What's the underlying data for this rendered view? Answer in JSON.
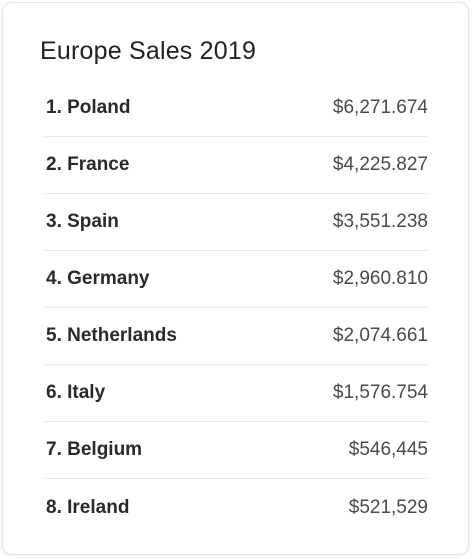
{
  "card": {
    "title": "Europe Sales 2019"
  },
  "rows": [
    {
      "label": "1. Poland",
      "value": "$6,271.674"
    },
    {
      "label": "2. France",
      "value": "$4,225.827"
    },
    {
      "label": "3. Spain",
      "value": "$3,551.238"
    },
    {
      "label": "4. Germany",
      "value": "$2,960.810"
    },
    {
      "label": "5. Netherlands",
      "value": "$2,074.661"
    },
    {
      "label": "6. Italy",
      "value": "$1,576.754"
    },
    {
      "label": "7. Belgium",
      "value": "$546,445"
    },
    {
      "label": "8. Ireland",
      "value": "$521,529"
    }
  ]
}
